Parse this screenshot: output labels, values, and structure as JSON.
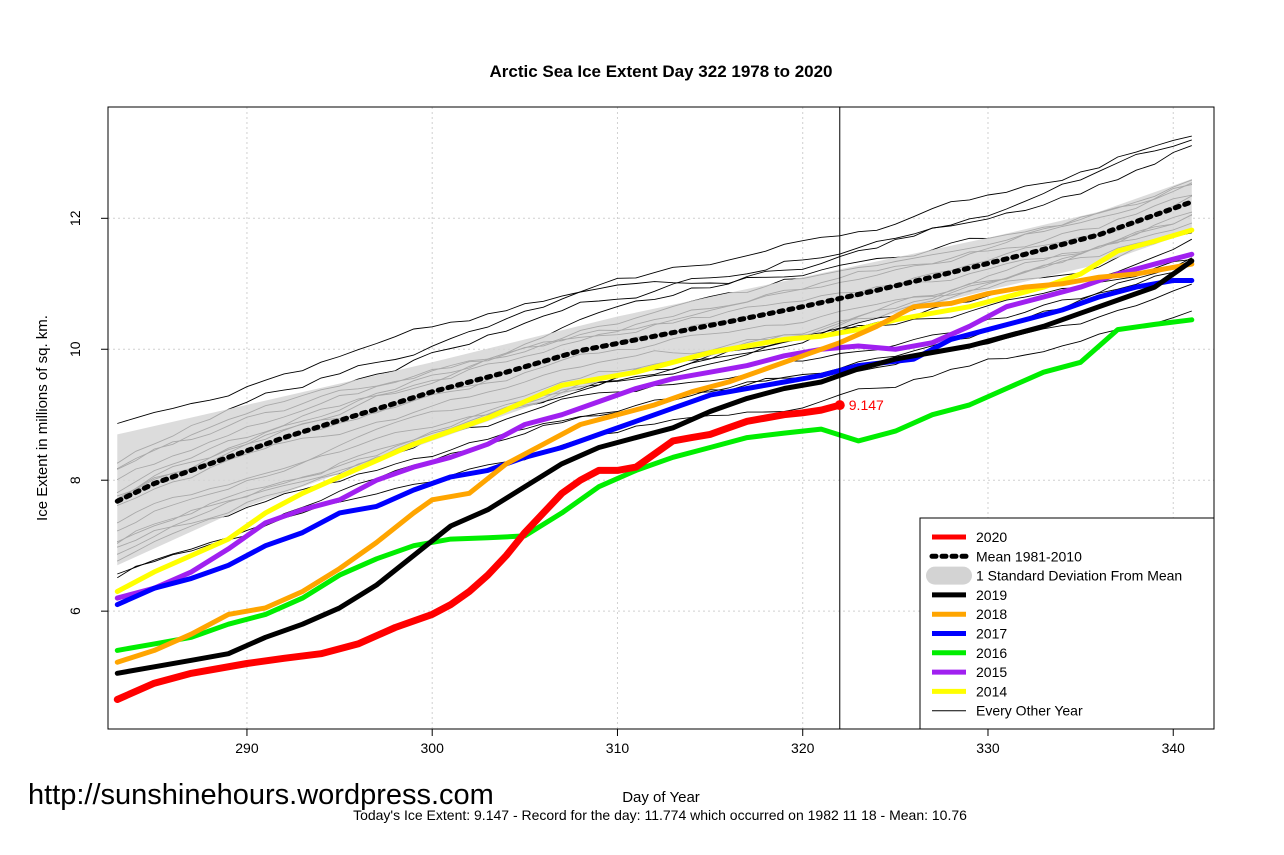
{
  "chart_data": {
    "type": "line",
    "title": "Arctic Sea Ice Extent Day 322 1978 to 2020",
    "xlabel": "Day of Year",
    "ylabel": "Ice Extent in millions of sq. km.",
    "xlim": [
      282.5,
      342.2
    ],
    "ylim": [
      4.2,
      13.7
    ],
    "x_ticks": [
      290,
      300,
      310,
      320,
      330,
      340
    ],
    "y_ticks": [
      6,
      8,
      10,
      12
    ],
    "current_day": 322,
    "grid": true,
    "legend_position": "bottom-right",
    "mean": {
      "name": "Mean 1981-2010",
      "color": "#000000",
      "points": [
        [
          283,
          7.68
        ],
        [
          285,
          7.95
        ],
        [
          288,
          8.25
        ],
        [
          292,
          8.65
        ],
        [
          296,
          9.0
        ],
        [
          300,
          9.35
        ],
        [
          304,
          9.65
        ],
        [
          308,
          9.98
        ],
        [
          312,
          10.2
        ],
        [
          316,
          10.42
        ],
        [
          320,
          10.65
        ],
        [
          324,
          10.9
        ],
        [
          328,
          11.17
        ],
        [
          332,
          11.45
        ],
        [
          336,
          11.75
        ],
        [
          338,
          11.95
        ],
        [
          341,
          12.25
        ]
      ]
    },
    "std_band": {
      "name": "1 Standard Deviation From Mean",
      "color": "#d3d3d3",
      "upper": [
        [
          283,
          8.7
        ],
        [
          290,
          9.15
        ],
        [
          300,
          9.8
        ],
        [
          310,
          10.5
        ],
        [
          320,
          11.1
        ],
        [
          330,
          11.7
        ],
        [
          336,
          12.1
        ],
        [
          341,
          12.6
        ]
      ],
      "lower": [
        [
          283,
          6.7
        ],
        [
          290,
          7.6
        ],
        [
          300,
          8.6
        ],
        [
          310,
          9.6
        ],
        [
          320,
          10.2
        ],
        [
          330,
          10.9
        ],
        [
          336,
          11.3
        ],
        [
          341,
          11.8
        ]
      ]
    },
    "series": [
      {
        "name": "2020",
        "color": "#ff0000",
        "width": 7,
        "points": [
          [
            283,
            4.65
          ],
          [
            285,
            4.9
          ],
          [
            287,
            5.05
          ],
          [
            290,
            5.2
          ],
          [
            292,
            5.28
          ],
          [
            294,
            5.35
          ],
          [
            296,
            5.5
          ],
          [
            298,
            5.75
          ],
          [
            300,
            5.95
          ],
          [
            301,
            6.1
          ],
          [
            302,
            6.3
          ],
          [
            303,
            6.55
          ],
          [
            304,
            6.85
          ],
          [
            305,
            7.2
          ],
          [
            306,
            7.5
          ],
          [
            307,
            7.8
          ],
          [
            308,
            8.0
          ],
          [
            309,
            8.15
          ],
          [
            310,
            8.15
          ],
          [
            311,
            8.2
          ],
          [
            312,
            8.4
          ],
          [
            313,
            8.6
          ],
          [
            314,
            8.65
          ],
          [
            315,
            8.7
          ],
          [
            316,
            8.8
          ],
          [
            317,
            8.9
          ],
          [
            318,
            8.95
          ],
          [
            319,
            9.0
          ],
          [
            320,
            9.03
          ],
          [
            321,
            9.07
          ],
          [
            322,
            9.147
          ]
        ]
      },
      {
        "name": "2019",
        "color": "#000000",
        "width": 5,
        "points": [
          [
            283,
            5.05
          ],
          [
            285,
            5.15
          ],
          [
            287,
            5.25
          ],
          [
            289,
            5.35
          ],
          [
            291,
            5.6
          ],
          [
            293,
            5.8
          ],
          [
            295,
            6.05
          ],
          [
            297,
            6.4
          ],
          [
            299,
            6.85
          ],
          [
            301,
            7.3
          ],
          [
            303,
            7.55
          ],
          [
            305,
            7.9
          ],
          [
            307,
            8.25
          ],
          [
            309,
            8.5
          ],
          [
            311,
            8.65
          ],
          [
            313,
            8.8
          ],
          [
            315,
            9.05
          ],
          [
            317,
            9.25
          ],
          [
            319,
            9.4
          ],
          [
            321,
            9.5
          ],
          [
            323,
            9.7
          ],
          [
            325,
            9.85
          ],
          [
            327,
            9.95
          ],
          [
            329,
            10.05
          ],
          [
            331,
            10.2
          ],
          [
            333,
            10.35
          ],
          [
            335,
            10.55
          ],
          [
            337,
            10.75
          ],
          [
            339,
            10.95
          ],
          [
            341,
            11.35
          ]
        ]
      },
      {
        "name": "2018",
        "color": "#ffa500",
        "width": 5,
        "points": [
          [
            283,
            5.22
          ],
          [
            285,
            5.4
          ],
          [
            287,
            5.65
          ],
          [
            289,
            5.95
          ],
          [
            291,
            6.05
          ],
          [
            293,
            6.3
          ],
          [
            295,
            6.65
          ],
          [
            297,
            7.05
          ],
          [
            299,
            7.5
          ],
          [
            300,
            7.7
          ],
          [
            302,
            7.8
          ],
          [
            304,
            8.25
          ],
          [
            306,
            8.55
          ],
          [
            308,
            8.85
          ],
          [
            310,
            9.0
          ],
          [
            312,
            9.15
          ],
          [
            314,
            9.35
          ],
          [
            316,
            9.5
          ],
          [
            318,
            9.7
          ],
          [
            320,
            9.9
          ],
          [
            322,
            10.1
          ],
          [
            324,
            10.35
          ],
          [
            326,
            10.65
          ],
          [
            328,
            10.7
          ],
          [
            330,
            10.85
          ],
          [
            332,
            10.95
          ],
          [
            334,
            11.0
          ],
          [
            336,
            11.1
          ],
          [
            338,
            11.15
          ],
          [
            341,
            11.3
          ]
        ]
      },
      {
        "name": "2017",
        "color": "#0000ff",
        "width": 5,
        "points": [
          [
            283,
            6.1
          ],
          [
            285,
            6.35
          ],
          [
            287,
            6.5
          ],
          [
            289,
            6.7
          ],
          [
            291,
            7.0
          ],
          [
            293,
            7.2
          ],
          [
            295,
            7.5
          ],
          [
            297,
            7.6
          ],
          [
            299,
            7.85
          ],
          [
            301,
            8.05
          ],
          [
            303,
            8.15
          ],
          [
            305,
            8.35
          ],
          [
            307,
            8.5
          ],
          [
            309,
            8.7
          ],
          [
            311,
            8.9
          ],
          [
            313,
            9.1
          ],
          [
            315,
            9.3
          ],
          [
            317,
            9.4
          ],
          [
            319,
            9.5
          ],
          [
            321,
            9.6
          ],
          [
            323,
            9.75
          ],
          [
            326,
            9.85
          ],
          [
            328,
            10.15
          ],
          [
            330,
            10.3
          ],
          [
            332,
            10.45
          ],
          [
            334,
            10.6
          ],
          [
            336,
            10.8
          ],
          [
            338,
            10.95
          ],
          [
            340,
            11.05
          ],
          [
            341,
            11.05
          ]
        ]
      },
      {
        "name": "2016",
        "color": "#00ee00",
        "width": 5,
        "points": [
          [
            283,
            5.4
          ],
          [
            285,
            5.5
          ],
          [
            287,
            5.6
          ],
          [
            289,
            5.8
          ],
          [
            291,
            5.95
          ],
          [
            293,
            6.2
          ],
          [
            295,
            6.55
          ],
          [
            297,
            6.8
          ],
          [
            299,
            7.0
          ],
          [
            301,
            7.1
          ],
          [
            303,
            7.12
          ],
          [
            305,
            7.15
          ],
          [
            307,
            7.5
          ],
          [
            309,
            7.9
          ],
          [
            311,
            8.15
          ],
          [
            313,
            8.35
          ],
          [
            315,
            8.5
          ],
          [
            317,
            8.65
          ],
          [
            319,
            8.72
          ],
          [
            321,
            8.78
          ],
          [
            323,
            8.6
          ],
          [
            325,
            8.75
          ],
          [
            327,
            9.0
          ],
          [
            329,
            9.15
          ],
          [
            331,
            9.4
          ],
          [
            333,
            9.65
          ],
          [
            335,
            9.8
          ],
          [
            337,
            10.3
          ],
          [
            339,
            10.38
          ],
          [
            341,
            10.45
          ]
        ]
      },
      {
        "name": "2015",
        "color": "#a020f0",
        "width": 5,
        "points": [
          [
            283,
            6.2
          ],
          [
            285,
            6.35
          ],
          [
            287,
            6.6
          ],
          [
            289,
            6.95
          ],
          [
            291,
            7.35
          ],
          [
            293,
            7.55
          ],
          [
            295,
            7.7
          ],
          [
            297,
            8.0
          ],
          [
            299,
            8.2
          ],
          [
            301,
            8.35
          ],
          [
            303,
            8.55
          ],
          [
            305,
            8.85
          ],
          [
            307,
            9.0
          ],
          [
            309,
            9.2
          ],
          [
            311,
            9.4
          ],
          [
            313,
            9.55
          ],
          [
            315,
            9.65
          ],
          [
            317,
            9.75
          ],
          [
            319,
            9.9
          ],
          [
            321,
            10.0
          ],
          [
            323,
            10.05
          ],
          [
            325,
            10.0
          ],
          [
            327,
            10.1
          ],
          [
            329,
            10.35
          ],
          [
            331,
            10.65
          ],
          [
            333,
            10.8
          ],
          [
            335,
            10.95
          ],
          [
            337,
            11.15
          ],
          [
            339,
            11.3
          ],
          [
            341,
            11.45
          ]
        ]
      },
      {
        "name": "2014",
        "color": "#ffff00",
        "width": 5,
        "points": [
          [
            283,
            6.3
          ],
          [
            285,
            6.6
          ],
          [
            287,
            6.85
          ],
          [
            289,
            7.1
          ],
          [
            291,
            7.5
          ],
          [
            293,
            7.8
          ],
          [
            295,
            8.05
          ],
          [
            297,
            8.3
          ],
          [
            299,
            8.55
          ],
          [
            301,
            8.75
          ],
          [
            303,
            8.95
          ],
          [
            305,
            9.2
          ],
          [
            307,
            9.45
          ],
          [
            309,
            9.55
          ],
          [
            311,
            9.65
          ],
          [
            313,
            9.8
          ],
          [
            315,
            9.95
          ],
          [
            317,
            10.05
          ],
          [
            319,
            10.15
          ],
          [
            321,
            10.2
          ],
          [
            323,
            10.3
          ],
          [
            325,
            10.45
          ],
          [
            327,
            10.55
          ],
          [
            329,
            10.65
          ],
          [
            331,
            10.8
          ],
          [
            333,
            10.95
          ],
          [
            335,
            11.15
          ],
          [
            337,
            11.5
          ],
          [
            339,
            11.65
          ],
          [
            341,
            11.82
          ]
        ]
      }
    ],
    "legend": [
      {
        "label": "2020",
        "color": "#ff0000",
        "style": "thick"
      },
      {
        "label": "Mean 1981-2010",
        "color": "#000000",
        "style": "dashed"
      },
      {
        "label": "1 Standard Deviation From Mean",
        "color": "#d3d3d3",
        "style": "band"
      },
      {
        "label": "2019",
        "color": "#000000",
        "style": "thick"
      },
      {
        "label": "2018",
        "color": "#ffa500",
        "style": "thick"
      },
      {
        "label": "2017",
        "color": "#0000ff",
        "style": "thick"
      },
      {
        "label": "2016",
        "color": "#00ee00",
        "style": "thick"
      },
      {
        "label": "2015",
        "color": "#a020f0",
        "style": "thick"
      },
      {
        "label": "2014",
        "color": "#ffff00",
        "style": "thick"
      },
      {
        "label": "Every Other Year",
        "color": "#000000",
        "style": "thin"
      }
    ],
    "annotation": {
      "text": "9.147",
      "x": 322,
      "y": 9.147,
      "color": "#ff0000"
    }
  },
  "footer": {
    "watermark": "http://sunshinehours.wordpress.com",
    "summary": "Today's Ice Extent: 9.147  - Record for the day: 11.774 which occurred on 1982 11 18  - Mean: 10.76"
  }
}
